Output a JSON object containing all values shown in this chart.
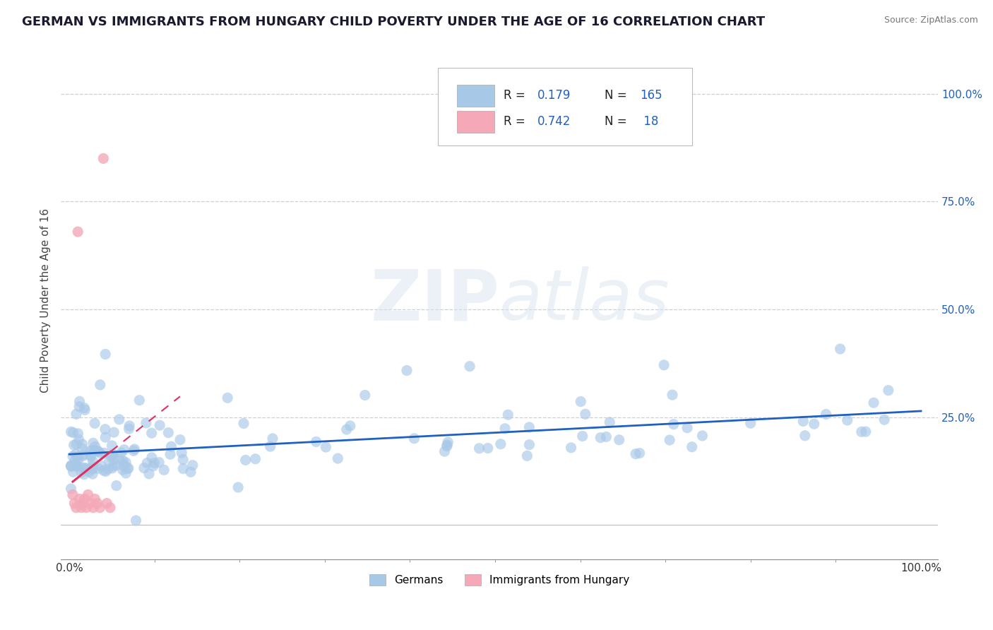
{
  "title": "GERMAN VS IMMIGRANTS FROM HUNGARY CHILD POVERTY UNDER THE AGE OF 16 CORRELATION CHART",
  "source": "Source: ZipAtlas.com",
  "ylabel": "Child Poverty Under the Age of 16",
  "xlim": [
    -0.01,
    1.02
  ],
  "ylim": [
    -0.08,
    1.12
  ],
  "yticks": [
    0.0,
    0.25,
    0.5,
    0.75,
    1.0
  ],
  "ytick_labels": [
    "",
    "25.0%",
    "50.0%",
    "75.0%",
    "100.0%"
  ],
  "xtick_labels": [
    "0.0%",
    "100.0%"
  ],
  "title_color": "#1a1a2e",
  "title_fontsize": 13,
  "legend_R1": "0.179",
  "legend_N1": "165",
  "legend_R2": "0.742",
  "legend_N2": "18",
  "blue_color": "#a8c8e8",
  "pink_color": "#f4a8b8",
  "trend_blue": "#2060c0",
  "trend_pink": "#e03060",
  "grid_color": "#c8d0d8",
  "bg_color": "#ffffff"
}
